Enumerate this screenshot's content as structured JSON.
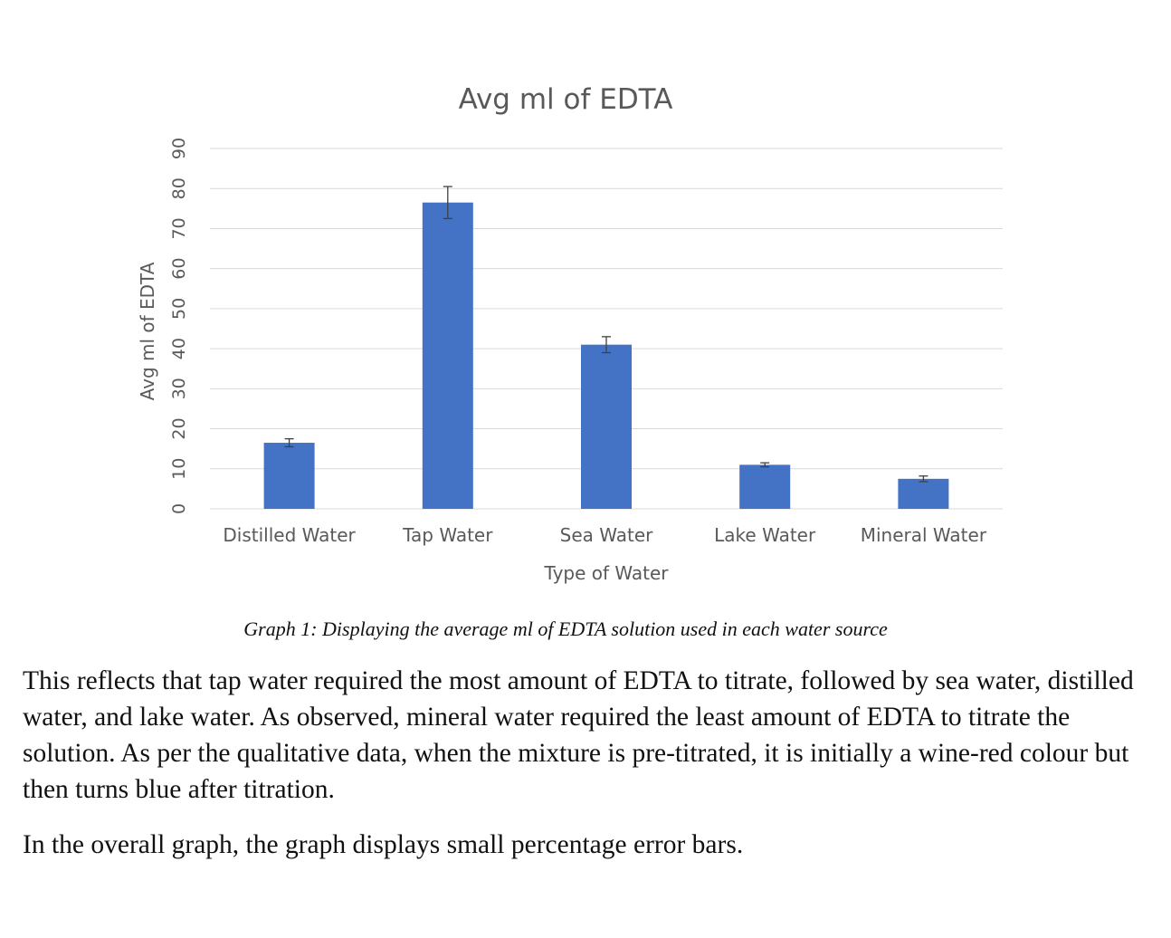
{
  "chart_data": {
    "type": "bar",
    "title": "Avg ml of EDTA",
    "xlabel": "Type of Water",
    "ylabel": "Avg ml of EDTA",
    "categories": [
      "Distilled Water",
      "Tap Water",
      "Sea Water",
      "Lake Water",
      "Mineral Water"
    ],
    "values": [
      16.5,
      76.5,
      41,
      11,
      7.5
    ],
    "error": [
      1,
      4,
      2,
      0.5,
      0.7
    ],
    "ylim": [
      0,
      90
    ],
    "yticks": [
      "0",
      "10",
      "20",
      "30",
      "40",
      "50",
      "60",
      "70",
      "80",
      "90"
    ],
    "grid": true,
    "legend": "none",
    "bar_color": "#4472C4",
    "error_bar_color": "#404040",
    "gridline_color": "#D9D9D9"
  },
  "caption": "Graph 1: Displaying the average ml of EDTA solution used in each water source",
  "paragraphs": [
    "This reflects that tap water required the most amount of EDTA to titrate, followed by sea water, distilled water, and lake water. As observed, mineral water required the least amount of EDTA to titrate the solution. As per the qualitative data, when the mixture is pre-titrated, it is initially a wine-red colour but then turns blue after titration.",
    "In the overall graph, the graph displays small percentage error bars."
  ]
}
